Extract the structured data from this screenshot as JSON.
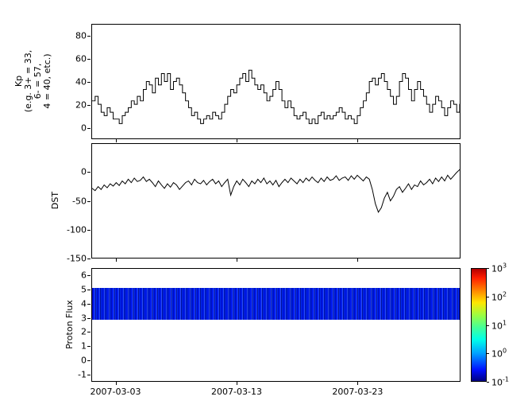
{
  "figure": {
    "background": "#ffffff",
    "line_color": "#000000"
  },
  "chart_data": {
    "type": "line",
    "title": "",
    "x_axis": {
      "start_day": 0,
      "end_day": 30.5,
      "tick_days": [
        2,
        12,
        22
      ],
      "tick_labels": [
        "2007-03-03",
        "2007-03-13",
        "2007-03-23"
      ]
    },
    "kp": {
      "type": "step-line",
      "ylabel_lines": [
        "Kp",
        "(e.g. 3+ = 33,",
        "6- = 57,",
        "4 = 40, etc.)"
      ],
      "ylim": [
        -10,
        90
      ],
      "yticks": [
        0,
        20,
        40,
        60,
        80
      ],
      "sample_interval_days": 0.25,
      "values": [
        23,
        27,
        20,
        13,
        10,
        17,
        13,
        7,
        7,
        3,
        10,
        13,
        17,
        23,
        20,
        27,
        23,
        33,
        40,
        37,
        30,
        43,
        37,
        47,
        40,
        47,
        33,
        40,
        43,
        37,
        30,
        23,
        17,
        10,
        13,
        7,
        3,
        7,
        10,
        7,
        13,
        10,
        7,
        13,
        20,
        27,
        33,
        30,
        37,
        43,
        47,
        40,
        50,
        43,
        37,
        33,
        37,
        30,
        23,
        27,
        33,
        40,
        33,
        23,
        17,
        23,
        17,
        10,
        7,
        10,
        13,
        7,
        3,
        7,
        3,
        10,
        13,
        7,
        10,
        7,
        10,
        13,
        17,
        13,
        7,
        10,
        7,
        3,
        10,
        17,
        23,
        30,
        40,
        43,
        37,
        43,
        47,
        40,
        33,
        27,
        20,
        27,
        40,
        47,
        43,
        33,
        23,
        33,
        40,
        33,
        27,
        20,
        13,
        20,
        27,
        23,
        17,
        10,
        17,
        23,
        20,
        13,
        20,
        37
      ]
    },
    "dst": {
      "type": "line",
      "ylabel": "DST",
      "ylim": [
        -150,
        50
      ],
      "yticks": [
        0,
        -50,
        -100,
        -150
      ],
      "sample_interval_days": 0.25,
      "values": [
        -28,
        -32,
        -25,
        -30,
        -22,
        -27,
        -20,
        -24,
        -18,
        -23,
        -15,
        -20,
        -12,
        -18,
        -10,
        -16,
        -14,
        -8,
        -16,
        -12,
        -18,
        -25,
        -15,
        -22,
        -28,
        -20,
        -26,
        -18,
        -22,
        -30,
        -24,
        -18,
        -15,
        -22,
        -12,
        -18,
        -20,
        -14,
        -22,
        -16,
        -12,
        -20,
        -15,
        -25,
        -18,
        -12,
        -40,
        -25,
        -15,
        -22,
        -12,
        -18,
        -25,
        -15,
        -20,
        -12,
        -18,
        -10,
        -20,
        -15,
        -22,
        -14,
        -25,
        -18,
        -12,
        -18,
        -10,
        -15,
        -20,
        -12,
        -18,
        -10,
        -15,
        -8,
        -14,
        -18,
        -10,
        -16,
        -8,
        -14,
        -12,
        -6,
        -14,
        -10,
        -8,
        -14,
        -6,
        -12,
        -5,
        -10,
        -15,
        -8,
        -12,
        -30,
        -55,
        -70,
        -62,
        -45,
        -35,
        -50,
        -42,
        -30,
        -25,
        -35,
        -28,
        -20,
        -30,
        -22,
        -25,
        -15,
        -22,
        -18,
        -12,
        -20,
        -10,
        -16,
        -8,
        -15,
        -5,
        -12,
        -6,
        0,
        5,
        10
      ]
    },
    "proton_flux": {
      "type": "heatmap",
      "ylabel": "Proton Flux",
      "ylim": [
        -1.5,
        6.5
      ],
      "yticks": [
        -1,
        0,
        1,
        2,
        3,
        4,
        5,
        6
      ],
      "band": {
        "y_min": 2.9,
        "y_max": 5.15,
        "approx_log10_value": -1,
        "stripe_colors": [
          "#0008b0",
          "#0020ff",
          "#0018d8",
          "#2a50ff",
          "#000a90",
          "#0030ff"
        ]
      },
      "colorbar": {
        "scale": "log",
        "tick_exponents": [
          3,
          2,
          1,
          0,
          -1
        ],
        "gradient_stops": [
          {
            "pos": 0.0,
            "color": "#000082"
          },
          {
            "pos": 0.1,
            "color": "#0010ff"
          },
          {
            "pos": 0.25,
            "color": "#00a4ff"
          },
          {
            "pos": 0.37,
            "color": "#00ffe8"
          },
          {
            "pos": 0.48,
            "color": "#46ff96"
          },
          {
            "pos": 0.58,
            "color": "#96ff46"
          },
          {
            "pos": 0.7,
            "color": "#ffe600"
          },
          {
            "pos": 0.8,
            "color": "#ff8c00"
          },
          {
            "pos": 0.92,
            "color": "#ff1e00"
          },
          {
            "pos": 1.0,
            "color": "#b40000"
          }
        ]
      }
    }
  }
}
